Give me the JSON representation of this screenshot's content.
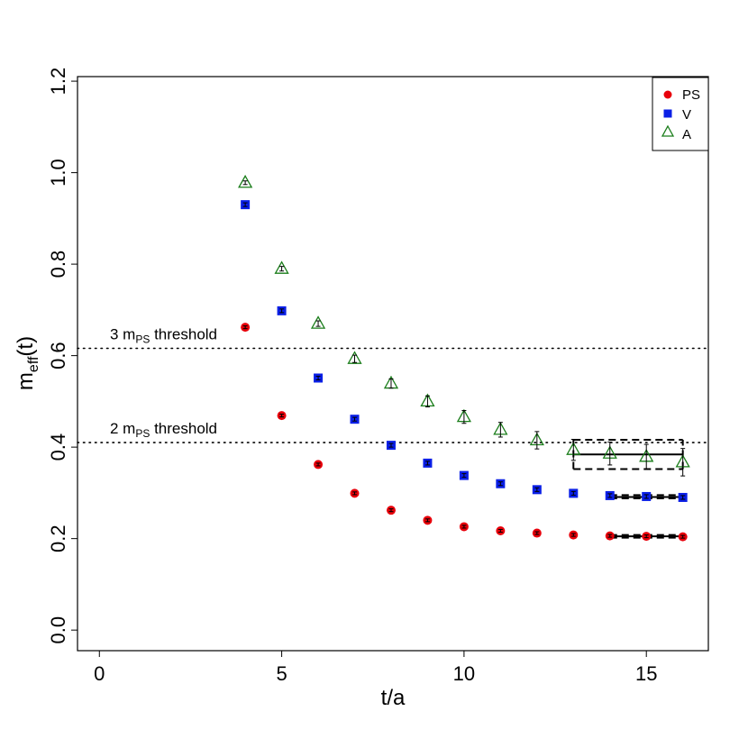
{
  "chart_data": {
    "type": "scatter",
    "xlabel": "t/a",
    "ylabel_main": "m",
    "ylabel_sub": "eff",
    "ylabel_tail": "(t)",
    "xlim": [
      -0.6,
      16.7
    ],
    "ylim": [
      -0.045,
      1.21
    ],
    "xticks": [
      0,
      5,
      10,
      15
    ],
    "yticks": [
      0.0,
      0.2,
      0.4,
      0.6,
      0.8,
      1.0,
      1.2
    ],
    "ytick_labels": [
      "0.0",
      "0.2",
      "0.4",
      "0.6",
      "0.8",
      "1.0",
      "1.2"
    ],
    "legend_position": "top-right",
    "series": [
      {
        "name": "PS",
        "marker": "circle",
        "color": "#e8000b",
        "x": [
          4,
          5,
          6,
          7,
          8,
          9,
          10,
          11,
          12,
          13,
          14,
          15,
          16
        ],
        "y": [
          0.662,
          0.469,
          0.362,
          0.299,
          0.262,
          0.24,
          0.226,
          0.217,
          0.212,
          0.208,
          0.206,
          0.205,
          0.204
        ],
        "err": [
          0.003,
          0.003,
          0.003,
          0.003,
          0.003,
          0.003,
          0.003,
          0.003,
          0.003,
          0.003,
          0.003,
          0.003,
          0.003
        ]
      },
      {
        "name": "V",
        "marker": "square",
        "color": "#0a1fe6",
        "x": [
          4,
          5,
          6,
          7,
          8,
          9,
          10,
          11,
          12,
          13,
          14,
          15,
          16
        ],
        "y": [
          0.93,
          0.698,
          0.551,
          0.461,
          0.404,
          0.365,
          0.338,
          0.32,
          0.307,
          0.299,
          0.294,
          0.292,
          0.29
        ],
        "err": [
          0.004,
          0.004,
          0.004,
          0.004,
          0.004,
          0.004,
          0.004,
          0.004,
          0.004,
          0.004,
          0.004,
          0.004,
          0.004
        ]
      },
      {
        "name": "A",
        "marker": "triangle",
        "color": "#1a7d1a",
        "x": [
          4,
          5,
          6,
          7,
          8,
          9,
          10,
          11,
          12,
          13,
          14,
          15,
          16
        ],
        "y": [
          0.978,
          0.79,
          0.67,
          0.593,
          0.539,
          0.5,
          0.466,
          0.438,
          0.415,
          0.394,
          0.386,
          0.379,
          0.367
        ],
        "err": [
          0.004,
          0.005,
          0.006,
          0.008,
          0.01,
          0.012,
          0.014,
          0.016,
          0.019,
          0.023,
          0.025,
          0.027,
          0.03
        ]
      }
    ],
    "fits": [
      {
        "series": "PS",
        "x": [
          14,
          16
        ],
        "value": 0.205,
        "band": [
          0.202,
          0.208
        ]
      },
      {
        "series": "V",
        "x": [
          14,
          16
        ],
        "value": 0.291,
        "band": [
          0.288,
          0.295
        ]
      },
      {
        "series": "A",
        "x": [
          13,
          16
        ],
        "value": 0.384,
        "band": [
          0.352,
          0.416
        ]
      }
    ],
    "thresholds": [
      {
        "label_num": "3 m",
        "label_sub": "PS",
        "label_tail": " threshold",
        "value": 0.616
      },
      {
        "label_num": "2 m",
        "label_sub": "PS",
        "label_tail": " threshold",
        "value": 0.41
      }
    ]
  }
}
